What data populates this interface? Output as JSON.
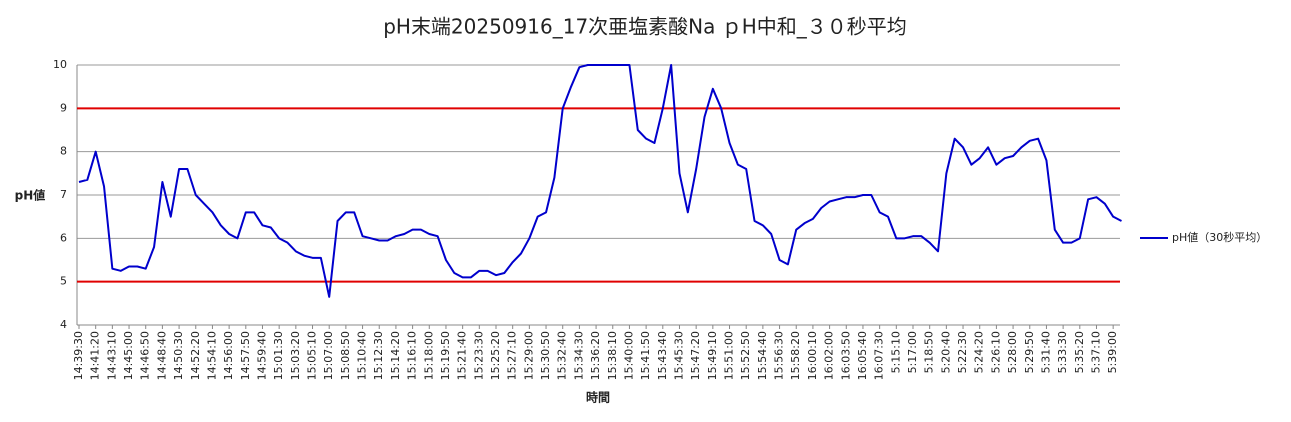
{
  "chart_data": {
    "type": "line",
    "title": "pH末端20250916_17次亜塩素酸Na ｐH中和_３０秒平均",
    "y_label": "pH値",
    "x_label": "時間",
    "categories": [
      "14:39:30",
      null,
      "14:41:20",
      null,
      "14:43:10",
      null,
      "14:45:00",
      null,
      "14:46:50",
      null,
      "14:48:40",
      null,
      "14:50:30",
      null,
      "14:52:20",
      null,
      "14:54:10",
      null,
      "14:56:00",
      null,
      "14:57:50",
      null,
      "14:59:40",
      null,
      "15:01:30",
      null,
      "15:03:20",
      null,
      "15:05:10",
      null,
      "15:07:00",
      null,
      "15:08:50",
      null,
      "15:10:40",
      null,
      "15:12:30",
      null,
      "15:14:20",
      null,
      "15:16:10",
      null,
      "15:18:00",
      null,
      "15:19:50",
      null,
      "15:21:40",
      null,
      "15:23:30",
      null,
      "15:25:20",
      null,
      "15:27:10",
      null,
      "15:29:00",
      null,
      "15:30:50",
      null,
      "15:32:40",
      null,
      "15:34:30",
      null,
      "15:36:20",
      null,
      "15:38:10",
      null,
      "15:40:00",
      null,
      "15:41:50",
      null,
      "15:43:40",
      null,
      "15:45:30",
      null,
      "15:47:20",
      null,
      "15:49:10",
      null,
      "15:51:00",
      null,
      "15:52:50",
      null,
      "15:54:40",
      null,
      "15:56:30",
      null,
      "15:58:20",
      null,
      "16:00:10",
      null,
      "16:02:00",
      null,
      "16:03:50",
      null,
      "16:05:40",
      null,
      "16:07:30",
      null,
      "5:15:10",
      null,
      "5:17:00",
      null,
      "5:18:50",
      null,
      "5:20:40",
      null,
      "5:22:30",
      null,
      "5:24:20",
      null,
      "5:26:10",
      null,
      "5:28:00",
      null,
      "5:29:50",
      null,
      "5:31:40",
      null,
      "5:33:30",
      null,
      "5:35:20",
      null,
      "5:37:10",
      null,
      "5:39:00",
      null
    ],
    "series": [
      {
        "name": "pH値（30秒平均）",
        "color": "#0000cc",
        "values": [
          7.3,
          7.35,
          8.0,
          7.2,
          5.3,
          5.25,
          5.35,
          5.35,
          5.3,
          5.8,
          7.3,
          6.5,
          7.6,
          7.6,
          7.0,
          6.8,
          6.6,
          6.3,
          6.1,
          6.0,
          6.6,
          6.6,
          6.3,
          6.25,
          6.0,
          5.9,
          5.7,
          5.6,
          5.55,
          5.55,
          4.65,
          6.4,
          6.6,
          6.6,
          6.05,
          6.0,
          5.95,
          5.95,
          6.05,
          6.1,
          6.2,
          6.2,
          6.1,
          6.05,
          5.5,
          5.2,
          5.1,
          5.1,
          5.25,
          5.25,
          5.15,
          5.2,
          5.45,
          5.65,
          6.0,
          6.5,
          6.6,
          7.4,
          9.0,
          9.5,
          9.95,
          10,
          10,
          10,
          10,
          10,
          10,
          8.5,
          8.3,
          8.2,
          9.0,
          10,
          7.5,
          6.6,
          7.6,
          8.8,
          9.45,
          9.0,
          8.2,
          7.7,
          7.6,
          6.4,
          6.3,
          6.1,
          5.5,
          5.4,
          6.2,
          6.35,
          6.45,
          6.7,
          6.85,
          6.9,
          6.95,
          6.95,
          7.0,
          7.0,
          6.6,
          6.5,
          6.0,
          6.0,
          6.05,
          6.05,
          5.9,
          5.7,
          7.5,
          8.3,
          8.1,
          7.7,
          7.85,
          8.1,
          7.7,
          7.85,
          7.9,
          8.1,
          8.25,
          8.3,
          7.8,
          6.2,
          5.9,
          5.9,
          6.0,
          6.9,
          6.95,
          6.8,
          6.5,
          6.4
        ]
      }
    ],
    "reference_lines": [
      {
        "value": 9,
        "color": "#e00000"
      },
      {
        "value": 5,
        "color": "#e00000"
      }
    ],
    "ylim": [
      4,
      10
    ],
    "yticks": [
      4,
      5,
      6,
      7,
      8,
      9,
      10
    ],
    "grid": true,
    "legend": "right"
  }
}
